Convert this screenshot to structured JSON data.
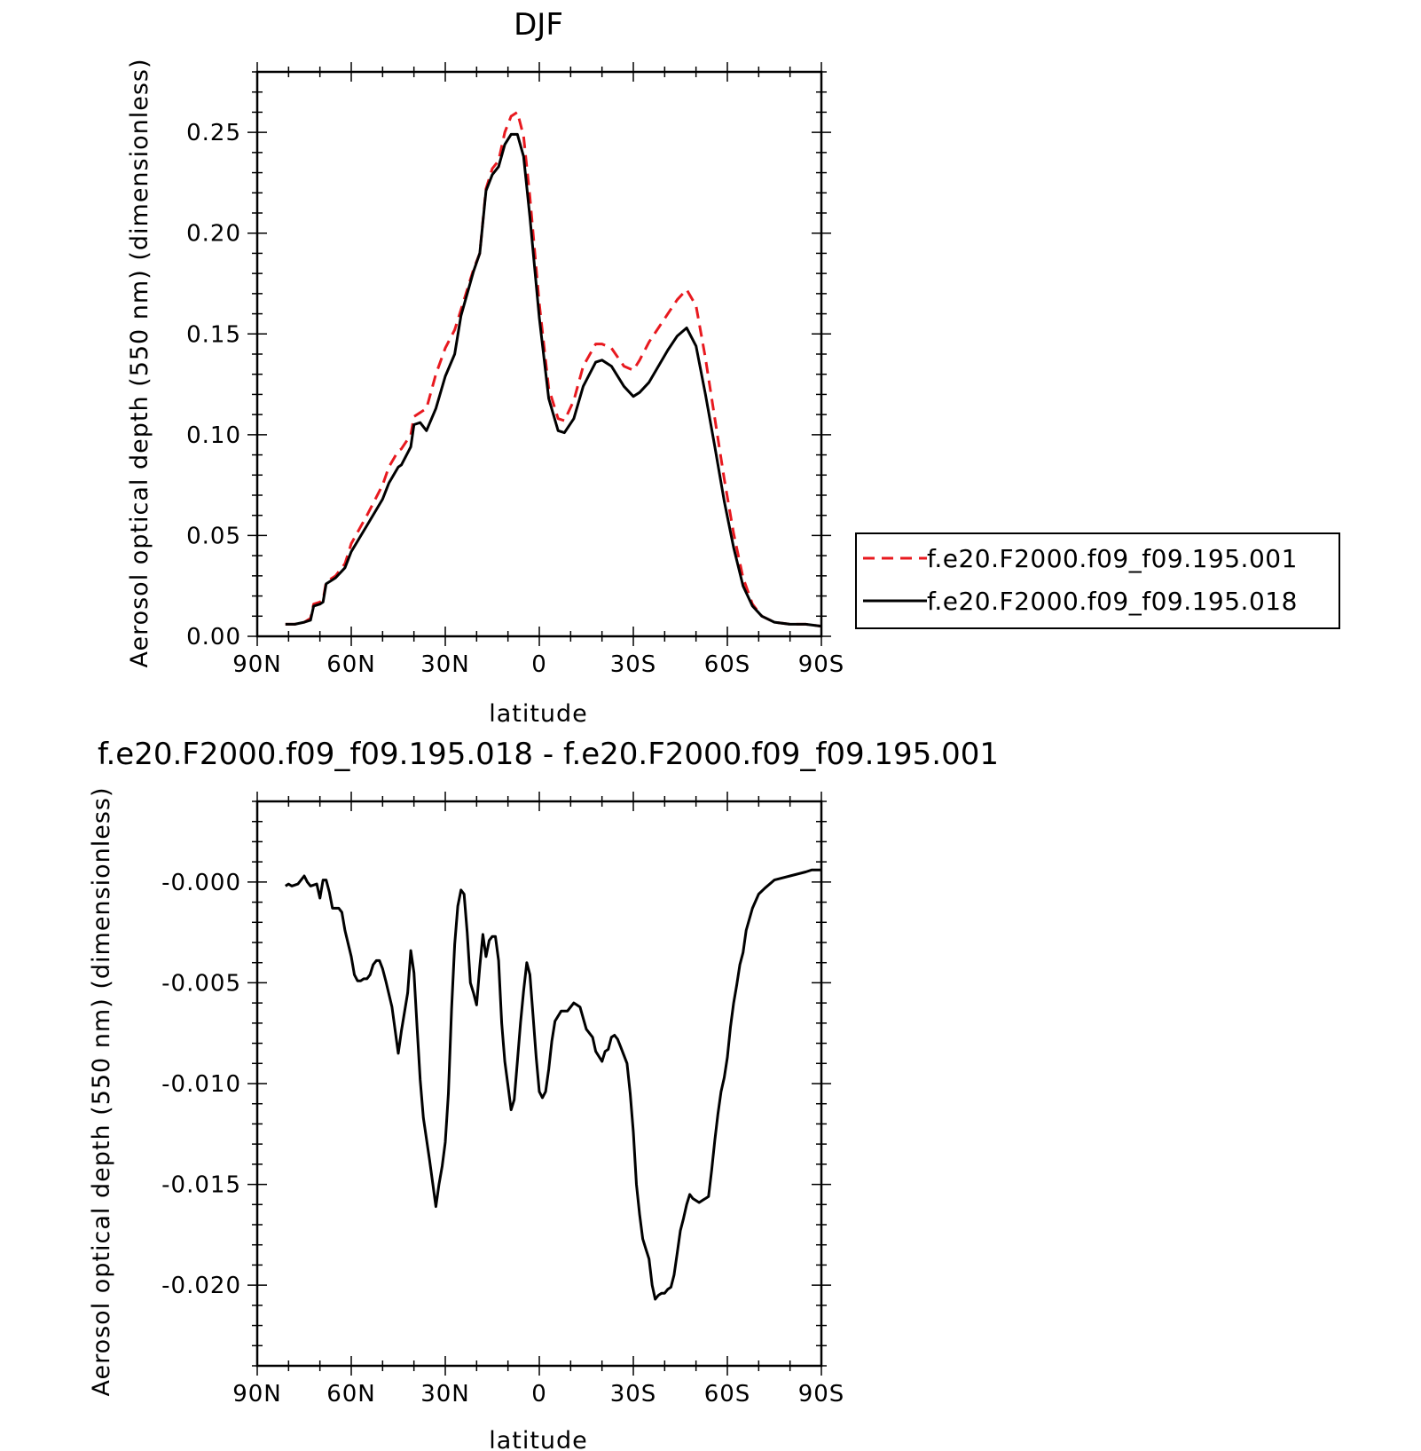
{
  "chart_data": [
    {
      "type": "line",
      "title": "DJF",
      "xlabel": "latitude",
      "ylabel": "Aerosol optical depth (550 nm) (dimensionless)",
      "xlim": [
        -90,
        90
      ],
      "ylim": [
        0,
        0.28
      ],
      "xticks": [
        -90,
        -60,
        -30,
        0,
        30,
        60,
        90
      ],
      "xticklabels": [
        "90N",
        "60N",
        "30N",
        "0",
        "30S",
        "60S",
        "90S"
      ],
      "yticks": [
        0,
        0.05,
        0.1,
        0.15,
        0.2,
        0.25
      ],
      "yticklabels": [
        "0.00",
        "0.05",
        "0.10",
        "0.15",
        "0.20",
        "0.25"
      ],
      "legend_position": "right",
      "series": [
        {
          "name": "f.e20.F2000.f09_f09.195.001",
          "color": "#e8191f",
          "style": "dashed",
          "x": [
            -81,
            -78,
            -75,
            -73,
            -72,
            -70,
            -69,
            -68,
            -65,
            -62,
            -60,
            -55,
            -50,
            -48,
            -45,
            -44,
            -41,
            -40,
            -36,
            -33,
            -30,
            -27,
            -25,
            -21,
            -19,
            -17,
            -15,
            -13,
            -11,
            -9,
            -7,
            -5,
            -3,
            0,
            3,
            6,
            8,
            11,
            14,
            18,
            20,
            23,
            27,
            30,
            32,
            35,
            38,
            41,
            44,
            47,
            50,
            53,
            56,
            59,
            62,
            65,
            68,
            71,
            75,
            80,
            85,
            90
          ],
          "y": [
            0.006,
            0.006,
            0.007,
            0.009,
            0.016,
            0.017,
            0.018,
            0.027,
            0.03,
            0.036,
            0.046,
            0.06,
            0.075,
            0.084,
            0.092,
            0.093,
            0.1,
            0.109,
            0.113,
            0.13,
            0.143,
            0.152,
            0.162,
            0.182,
            0.19,
            0.222,
            0.232,
            0.236,
            0.25,
            0.258,
            0.26,
            0.248,
            0.218,
            0.165,
            0.123,
            0.108,
            0.107,
            0.117,
            0.134,
            0.145,
            0.145,
            0.143,
            0.134,
            0.132,
            0.137,
            0.146,
            0.153,
            0.16,
            0.167,
            0.172,
            0.164,
            0.138,
            0.108,
            0.078,
            0.051,
            0.029,
            0.016,
            0.01,
            0.007,
            0.006,
            0.006,
            0.005
          ]
        },
        {
          "name": "f.e20.F2000.f09_f09.195.018",
          "color": "#000000",
          "style": "solid",
          "x": [
            -81,
            -78,
            -75,
            -73,
            -72,
            -70,
            -69,
            -68,
            -65,
            -62,
            -60,
            -55,
            -50,
            -48,
            -45,
            -44,
            -41,
            -40,
            -38,
            -36,
            -33,
            -30,
            -27,
            -25,
            -21,
            -19,
            -17,
            -15,
            -13,
            -11,
            -9,
            -7,
            -5,
            -3,
            0,
            3,
            6,
            8,
            11,
            14,
            18,
            20,
            23,
            27,
            30,
            32,
            35,
            38,
            41,
            44,
            47,
            50,
            53,
            56,
            59,
            62,
            65,
            68,
            71,
            75,
            80,
            85,
            90
          ],
          "y": [
            0.006,
            0.006,
            0.007,
            0.008,
            0.015,
            0.016,
            0.017,
            0.026,
            0.029,
            0.034,
            0.042,
            0.055,
            0.068,
            0.076,
            0.084,
            0.085,
            0.094,
            0.105,
            0.106,
            0.102,
            0.113,
            0.129,
            0.14,
            0.159,
            0.181,
            0.19,
            0.221,
            0.229,
            0.233,
            0.244,
            0.249,
            0.249,
            0.238,
            0.208,
            0.158,
            0.118,
            0.102,
            0.101,
            0.108,
            0.124,
            0.136,
            0.137,
            0.134,
            0.124,
            0.119,
            0.121,
            0.126,
            0.134,
            0.142,
            0.149,
            0.153,
            0.144,
            0.12,
            0.094,
            0.067,
            0.044,
            0.025,
            0.015,
            0.01,
            0.007,
            0.006,
            0.006,
            0.005
          ]
        }
      ]
    },
    {
      "type": "line",
      "title": "f.e20.F2000.f09_f09.195.018 - f.e20.F2000.f09_f09.195.001",
      "xlabel": "latitude",
      "ylabel": "Aerosol optical depth (550 nm) (dimensionless)",
      "xlim": [
        -90,
        90
      ],
      "ylim": [
        -0.024,
        0.004
      ],
      "xticks": [
        -90,
        -60,
        -30,
        0,
        30,
        60,
        90
      ],
      "xticklabels": [
        "90N",
        "60N",
        "30N",
        "0",
        "30S",
        "60S",
        "90S"
      ],
      "yticks": [
        0,
        -0.005,
        -0.01,
        -0.015,
        -0.02
      ],
      "yticklabels": [
        "-0.000",
        "-0.005",
        "-0.010",
        "-0.015",
        "-0.020"
      ],
      "series": [
        {
          "color": "#000000",
          "style": "solid",
          "x": [
            -81,
            -80,
            -79,
            -77,
            -75,
            -74,
            -73,
            -71,
            -70,
            -69,
            -68,
            -67,
            -66,
            -64,
            -63,
            -62,
            -60,
            -59,
            -58,
            -57,
            -56,
            -55,
            -54,
            -53,
            -52,
            -51,
            -50,
            -49,
            -47,
            -45,
            -44,
            -42,
            -41,
            -40,
            -39,
            -38,
            -37,
            -35,
            -33,
            -32,
            -31,
            -30,
            -29,
            -28,
            -27,
            -26,
            -25,
            -24,
            -23,
            -22,
            -21,
            -20,
            -19,
            -18,
            -17,
            -16,
            -15,
            -14,
            -13,
            -12,
            -11,
            -10,
            -9,
            -8,
            -7,
            -6,
            -5,
            -4,
            -3,
            -2,
            -1,
            0,
            1,
            2,
            3,
            4,
            5,
            7,
            9,
            11,
            12,
            13,
            15,
            17,
            18,
            20,
            21,
            22,
            23,
            24,
            25,
            26,
            27,
            28,
            29,
            30,
            31,
            32,
            33,
            34,
            35,
            36,
            37,
            38,
            39,
            40,
            41,
            42,
            43,
            44,
            45,
            46,
            47,
            48,
            49,
            51,
            52,
            53,
            54,
            55,
            56,
            57,
            58,
            59,
            60,
            61,
            62,
            63,
            64,
            65,
            66,
            68,
            70,
            72,
            75,
            80,
            85,
            87,
            90
          ],
          "y": [
            -0.0002,
            -0.0001,
            -0.0002,
            -0.0001,
            0.0003,
            0,
            -0.0002,
            -0.0001,
            -0.0008,
            0.0001,
            0.0001,
            -0.0005,
            -0.0013,
            -0.0013,
            -0.0015,
            -0.0024,
            -0.0037,
            -0.0046,
            -0.0049,
            -0.0049,
            -0.0048,
            -0.0048,
            -0.0046,
            -0.0041,
            -0.0039,
            -0.0039,
            -0.0043,
            -0.0049,
            -0.0062,
            -0.0085,
            -0.0074,
            -0.0055,
            -0.0034,
            -0.0045,
            -0.0072,
            -0.0098,
            -0.0117,
            -0.0138,
            -0.0161,
            -0.015,
            -0.0141,
            -0.0129,
            -0.0105,
            -0.0063,
            -0.0031,
            -0.0012,
            -0.0004,
            -0.0006,
            -0.0025,
            -0.005,
            -0.0055,
            -0.0061,
            -0.0042,
            -0.0026,
            -0.0037,
            -0.0029,
            -0.0027,
            -0.0027,
            -0.0039,
            -0.007,
            -0.0089,
            -0.0101,
            -0.0113,
            -0.0108,
            -0.0089,
            -0.007,
            -0.0054,
            -0.004,
            -0.0046,
            -0.0066,
            -0.0087,
            -0.0104,
            -0.0107,
            -0.0104,
            -0.0093,
            -0.0079,
            -0.0069,
            -0.0064,
            -0.0064,
            -0.006,
            -0.0061,
            -0.0062,
            -0.0073,
            -0.0077,
            -0.0084,
            -0.0089,
            -0.0084,
            -0.0083,
            -0.0077,
            -0.0076,
            -0.0078,
            -0.0082,
            -0.0086,
            -0.009,
            -0.0105,
            -0.0124,
            -0.015,
            -0.0165,
            -0.0177,
            -0.0182,
            -0.0187,
            -0.02,
            -0.0207,
            -0.0205,
            -0.0204,
            -0.0204,
            -0.0202,
            -0.0201,
            -0.0195,
            -0.0184,
            -0.0173,
            -0.0167,
            -0.016,
            -0.0155,
            -0.0157,
            -0.0159,
            -0.0158,
            -0.0157,
            -0.0156,
            -0.0143,
            -0.0128,
            -0.0115,
            -0.0104,
            -0.0097,
            -0.0087,
            -0.0072,
            -0.006,
            -0.0051,
            -0.0041,
            -0.0035,
            -0.0024,
            -0.0013,
            -0.0006,
            -0.0003,
            0.0001,
            0.0003,
            0.0005,
            0.0006,
            0.0006
          ]
        }
      ]
    }
  ]
}
